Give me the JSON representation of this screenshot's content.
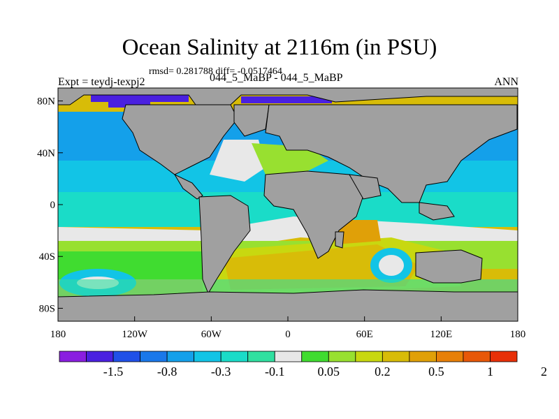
{
  "title": "Ocean Salinity at 2116m (in PSU)",
  "subtitle": "rmsd= 0.281788 diff= -0.0517464",
  "left_label": "Expt = teydj-texpj2",
  "center_label": "044_5_MaBP - 044_5_MaBP",
  "right_label": "ANN",
  "map": {
    "lon_range": [
      -180,
      180
    ],
    "lat_range": [
      -90,
      90
    ],
    "land_color": "#a0a0a0",
    "lon_ticks": [
      {
        "value": -180,
        "label": "180"
      },
      {
        "value": -120,
        "label": "120W"
      },
      {
        "value": -60,
        "label": "60W"
      },
      {
        "value": 0,
        "label": "0"
      },
      {
        "value": 60,
        "label": "60E"
      },
      {
        "value": 120,
        "label": "120E"
      },
      {
        "value": 180,
        "label": "180"
      }
    ],
    "lat_ticks": [
      {
        "value": 80,
        "label": "80N"
      },
      {
        "value": 40,
        "label": "40N"
      },
      {
        "value": 0,
        "label": "0"
      },
      {
        "value": -40,
        "label": "40S"
      },
      {
        "value": -80,
        "label": "80S"
      }
    ]
  },
  "colorbar": {
    "colors": [
      "#8a1ee0",
      "#4a20e0",
      "#2050e8",
      "#1a78ea",
      "#14a0ea",
      "#12c4e6",
      "#1adcc8",
      "#30e0a0",
      "#e8e8e8",
      "#40dc30",
      "#98e030",
      "#c8d810",
      "#d8bc08",
      "#e0a008",
      "#e88008",
      "#e85808",
      "#e83008"
    ],
    "labels": [
      "-1.5",
      "-0.8",
      "-0.3",
      "-0.1",
      "0.05",
      "0.2",
      "0.5",
      "1",
      "2"
    ]
  }
}
